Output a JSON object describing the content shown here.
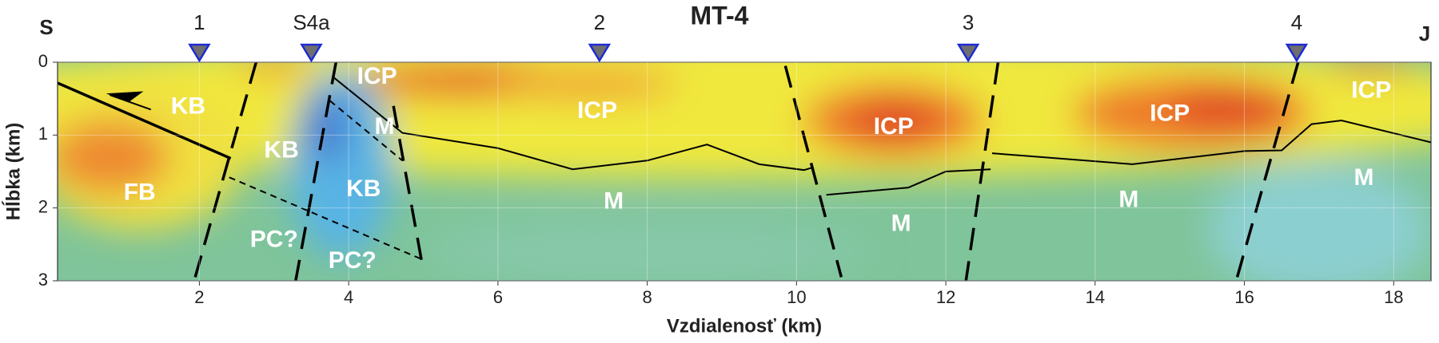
{
  "chart_data": {
    "type": "section",
    "title": "MT-4",
    "left_label": "S",
    "right_label": "J",
    "xlabel": "Vzdialenosť (km)",
    "ylabel": "Hĺbka (km)",
    "xlim": [
      0.1,
      18.5
    ],
    "ylim": [
      0,
      3
    ],
    "y_inverted": true,
    "xticks": [
      2,
      4,
      6,
      8,
      10,
      12,
      14,
      16,
      18
    ],
    "yticks": [
      0,
      1,
      2,
      3
    ],
    "grid": true,
    "stations": {
      "names": [
        "1",
        "S4a",
        "2",
        "3",
        "4"
      ],
      "x": [
        2.0,
        3.5,
        7.36,
        12.3,
        16.7
      ],
      "color": "#6e6e6e",
      "edge": "#1c2bd6"
    },
    "units": [
      "KB",
      "FB",
      "KB",
      "KB",
      "PC?",
      "PC?",
      "ICP",
      "M",
      "ICP",
      "M",
      "ICP",
      "M",
      "ICP",
      "M",
      "ICP",
      "M"
    ]
  }
}
